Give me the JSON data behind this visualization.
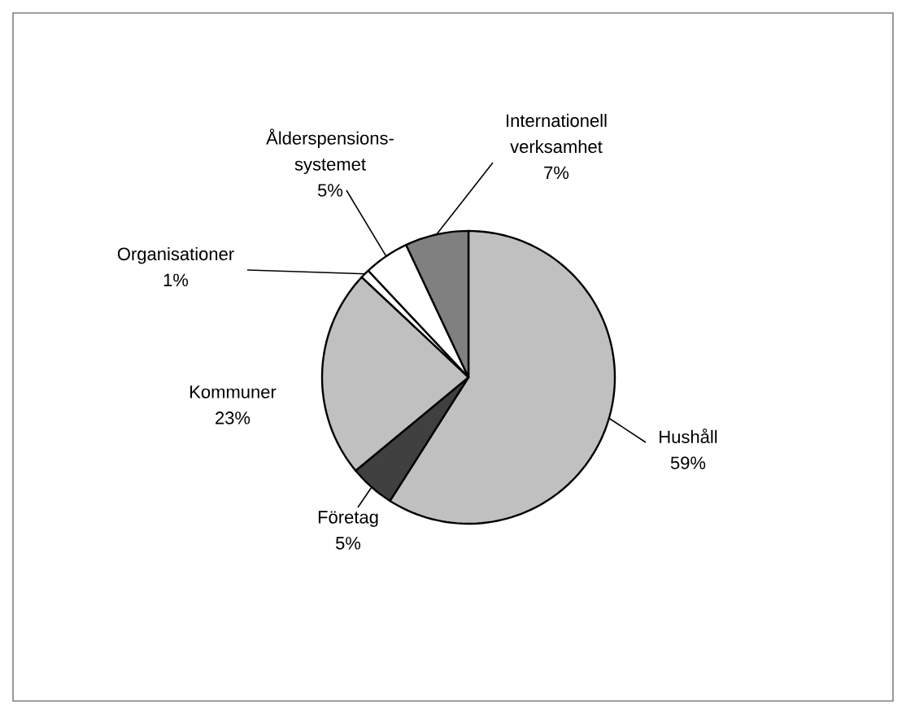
{
  "chart_data": {
    "type": "pie",
    "categories": [
      "Hushåll",
      "Företag",
      "Kommuner",
      "Organisationer",
      "Ålderspensions-systemet",
      "Internationell verksamhet"
    ],
    "values": [
      59,
      5,
      23,
      1,
      5,
      7
    ],
    "colors": [
      "#c0c0c0",
      "#404040",
      "#c0c0c0",
      "#ffffff",
      "#ffffff",
      "#808080"
    ],
    "value_labels": [
      "59%",
      "5%",
      "23%",
      "1%",
      "5%",
      "7%"
    ]
  }
}
